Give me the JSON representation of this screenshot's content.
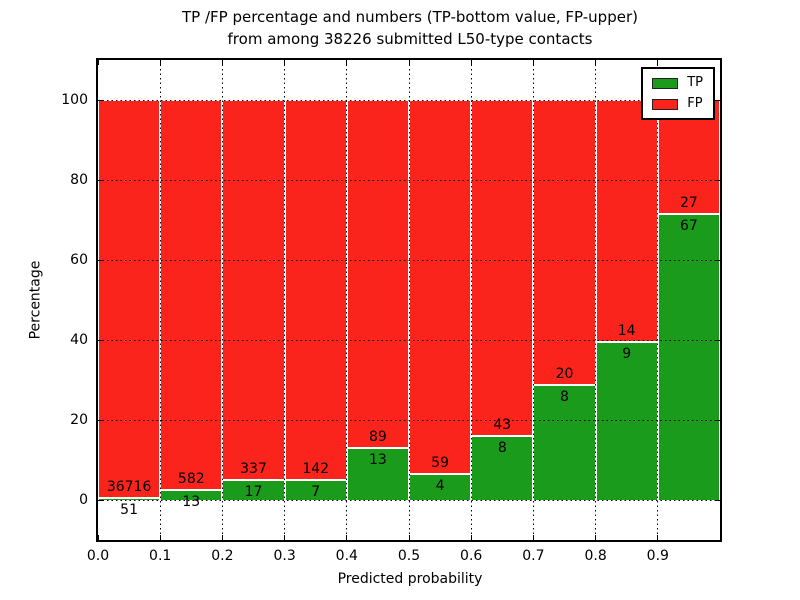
{
  "title": {
    "line1": "TP /FP percentage and numbers (TP-bottom value, FP-upper)",
    "line2": "from among 38226 submitted L50-type contacts"
  },
  "chart_data": {
    "type": "bar",
    "stacked": true,
    "normalized": "each bin scaled to 100%, bar heights are TP/(TP+FP) and FP/(TP+FP) percentages",
    "title": "TP /FP percentage and numbers (TP-bottom value, FP-upper)\nfrom among 38226 submitted L50-type contacts",
    "total_contacts": 38226,
    "xlabel": "Predicted probability",
    "ylabel": "Percentage",
    "xlim": [
      0.0,
      1.0
    ],
    "ylim": [
      -10,
      110
    ],
    "grid": true,
    "legend_position": "upper right",
    "categories": [
      "0.0-0.1",
      "0.1-0.2",
      "0.2-0.3",
      "0.3-0.4",
      "0.4-0.5",
      "0.5-0.6",
      "0.6-0.7",
      "0.7-0.8",
      "0.8-0.9",
      "0.9-1.0"
    ],
    "xticks": [
      "0.0",
      "0.1",
      "0.2",
      "0.3",
      "0.4",
      "0.5",
      "0.6",
      "0.7",
      "0.8",
      "0.9"
    ],
    "yticks": [
      0,
      20,
      40,
      60,
      80,
      100
    ],
    "series": [
      {
        "name": "TP",
        "color": "#1b9b1b",
        "counts": [
          51,
          13,
          17,
          7,
          13,
          4,
          8,
          8,
          9,
          67
        ]
      },
      {
        "name": "FP",
        "color": "#fb241c",
        "counts": [
          36716,
          582,
          337,
          142,
          89,
          59,
          43,
          20,
          14,
          27
        ]
      }
    ],
    "tp_percent_approx": [
      0.14,
      2.18,
      4.8,
      4.7,
      12.75,
      6.35,
      15.69,
      28.57,
      39.13,
      71.28
    ]
  },
  "legend": {
    "items": [
      {
        "label": "TP",
        "color": "#1b9b1b"
      },
      {
        "label": "FP",
        "color": "#fb241c"
      }
    ]
  }
}
